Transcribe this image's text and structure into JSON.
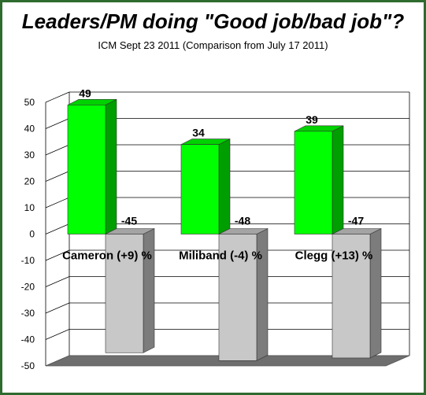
{
  "colors": {
    "positive": "#00ff00",
    "negative": "#c8c8c8",
    "border": "#2e6b2e"
  },
  "chart_data": {
    "type": "bar",
    "title": "Leaders/PM doing \"Good job/bad job\"?",
    "subtitle": "ICM  Sept 23 2011 (Comparison from July 17 2011)",
    "categories": [
      "Cameron (+9)  %",
      "Miliband (-4) %",
      "Clegg (+13) %"
    ],
    "series": [
      {
        "values": [
          49,
          34,
          39
        ]
      },
      {
        "values": [
          -45,
          -48,
          -47
        ]
      }
    ],
    "value_labels": [
      [
        "49",
        "34",
        "39"
      ],
      [
        "-45",
        "-48",
        "-47"
      ]
    ],
    "ylim": [
      -50,
      50
    ],
    "yticks": [
      50,
      40,
      30,
      20,
      10,
      0,
      -10,
      -20,
      -30,
      -40,
      -50
    ],
    "grid": true,
    "legend": "none"
  }
}
